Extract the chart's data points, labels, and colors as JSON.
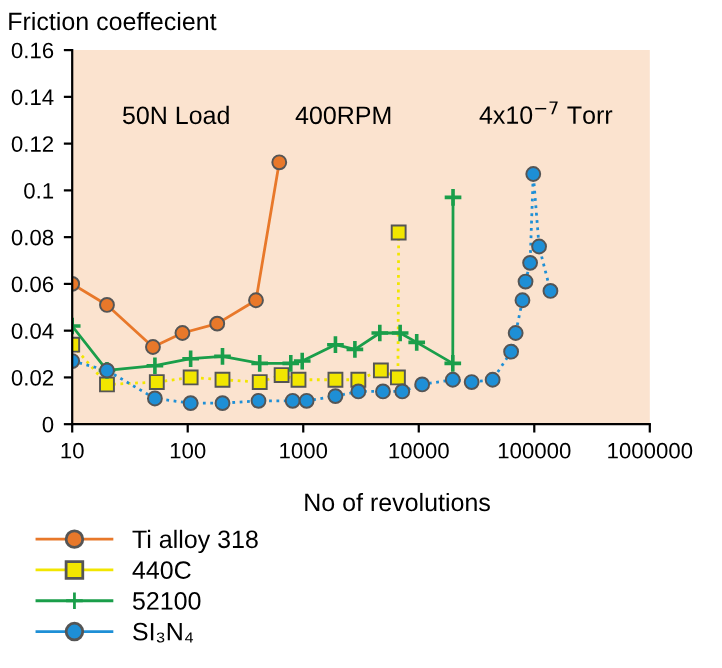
{
  "chart_data": {
    "type": "line",
    "xlabel": "No of revolutions",
    "ylabel": "Friction coeffecient",
    "annotations": [
      "50N Load",
      "400RPM",
      "4x10$^{−7}$ Torr"
    ],
    "log": "x",
    "xlim": [
      10,
      1000000
    ],
    "ylim": [
      0,
      0.16
    ],
    "xticks": [
      10,
      100,
      1000,
      10000,
      100000,
      1000000
    ],
    "yticks": [
      0,
      0.02,
      0.04,
      0.06,
      0.08,
      {
        "value": 0.1,
        "label": "0.1"
      },
      0.12,
      0.14,
      0.16
    ],
    "grid": false,
    "legend": "bottom left",
    "series": [
      {
        "name": "Ti alloy 318",
        "color": "#e8782a",
        "marker": "circle",
        "line_style": "solid",
        "x": [
          10,
          20,
          50,
          90,
          180,
          390,
          620
        ],
        "values": [
          0.06,
          0.051,
          0.033,
          0.039,
          0.043,
          0.053,
          0.112
        ]
      },
      {
        "name": "440C",
        "color": "#f2e600",
        "marker": "square",
        "line_style": "dotted",
        "x": [
          10,
          20,
          54,
          106,
          200,
          420,
          650,
          910,
          1900,
          3000,
          4700,
          6600,
          6700
        ],
        "values": [
          0.034,
          0.017,
          0.018,
          0.02,
          0.019,
          0.018,
          0.021,
          0.019,
          0.019,
          0.019,
          0.023,
          0.02,
          0.082
        ]
      },
      {
        "name": "52100",
        "color": "#1a9e4a",
        "marker": "cross",
        "line_style": "solid",
        "x": [
          10,
          20,
          52,
          106,
          200,
          420,
          780,
          980,
          1900,
          2800,
          4600,
          6900,
          9600,
          19700,
          19800
        ],
        "values": [
          0.042,
          0.023,
          0.025,
          0.028,
          0.029,
          0.026,
          0.026,
          0.027,
          0.034,
          0.032,
          0.039,
          0.039,
          0.035,
          0.026,
          0.097
        ]
      },
      {
        "name": "SI₃N₄",
        "color": "#1e8fd6",
        "marker": "circle",
        "line_style": "dotted",
        "x": [
          10,
          20,
          52,
          106,
          200,
          410,
          810,
          1070,
          1900,
          3000,
          4900,
          7200,
          10700,
          19700,
          28700,
          43600,
          63000,
          69000,
          79000,
          84000,
          92000,
          98000,
          110000,
          138000
        ],
        "values": [
          0.027,
          0.023,
          0.011,
          0.009,
          0.009,
          0.01,
          0.01,
          0.01,
          0.012,
          0.014,
          0.014,
          0.014,
          0.017,
          0.019,
          0.018,
          0.019,
          0.031,
          0.039,
          0.053,
          0.061,
          0.069,
          0.107,
          0.076,
          0.057
        ]
      }
    ]
  }
}
